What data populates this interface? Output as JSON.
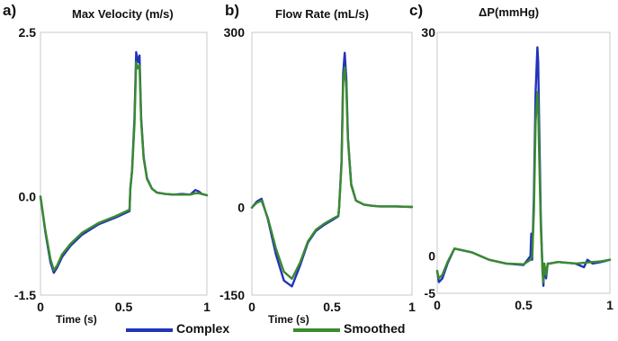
{
  "legend": [
    {
      "label": "Complex",
      "color": "#2233bb"
    },
    {
      "label": "Smoothed",
      "color": "#3a8a2e"
    }
  ],
  "chart_data": [
    {
      "type": "line",
      "panel_letter": "a)",
      "title": "Max Velocity (m/s)",
      "xlabel": "Time (s)",
      "xlim": [
        0,
        1
      ],
      "ylim": [
        -1.5,
        2.5
      ],
      "x_ticks": [
        {
          "value": 0,
          "label": "0"
        },
        {
          "value": 0.5,
          "label": "0.5"
        },
        {
          "value": 1,
          "label": "1"
        }
      ],
      "y_ticks": [
        {
          "value": 2.5,
          "label": "2.5"
        },
        {
          "value": 0,
          "label": "0.0"
        },
        {
          "value": -1.5,
          "label": "-1.5"
        }
      ],
      "series": [
        {
          "name": "Complex",
          "color": "#2233bb",
          "x": [
            0,
            0.03,
            0.06,
            0.08,
            0.1,
            0.13,
            0.18,
            0.25,
            0.35,
            0.45,
            0.535,
            0.54,
            0.55,
            0.565,
            0.575,
            0.585,
            0.595,
            0.605,
            0.62,
            0.64,
            0.67,
            0.7,
            0.75,
            0.8,
            0.85,
            0.9,
            0.93,
            0.95,
            0.97,
            1.0
          ],
          "y": [
            0.0,
            -0.55,
            -1.0,
            -1.16,
            -1.08,
            -0.92,
            -0.75,
            -0.58,
            -0.42,
            -0.32,
            -0.22,
            0.12,
            0.4,
            1.2,
            2.2,
            2.05,
            2.15,
            1.2,
            0.6,
            0.28,
            0.12,
            0.06,
            0.04,
            0.03,
            0.04,
            0.03,
            0.1,
            0.08,
            0.04,
            0.02
          ]
        },
        {
          "name": "Smoothed",
          "color": "#3a8a2e",
          "x": [
            0,
            0.03,
            0.06,
            0.08,
            0.1,
            0.13,
            0.18,
            0.25,
            0.35,
            0.45,
            0.535,
            0.54,
            0.55,
            0.565,
            0.575,
            0.585,
            0.595,
            0.605,
            0.62,
            0.64,
            0.67,
            0.7,
            0.75,
            0.8,
            0.85,
            0.9,
            0.93,
            0.95,
            0.97,
            1.0
          ],
          "y": [
            0.0,
            -0.52,
            -0.95,
            -1.12,
            -1.05,
            -0.88,
            -0.72,
            -0.55,
            -0.4,
            -0.3,
            -0.2,
            0.12,
            0.38,
            1.1,
            2.05,
            1.95,
            2.0,
            1.15,
            0.58,
            0.27,
            0.12,
            0.06,
            0.04,
            0.03,
            0.03,
            0.03,
            0.05,
            0.05,
            0.04,
            0.02
          ]
        }
      ]
    },
    {
      "type": "line",
      "panel_letter": "b)",
      "title": "Flow Rate (mL/s)",
      "xlabel": "Time (s)",
      "xlim": [
        0,
        1
      ],
      "ylim": [
        -150,
        300
      ],
      "x_ticks": [
        {
          "value": 0,
          "label": "0"
        },
        {
          "value": 0.5,
          "label": "0.5"
        },
        {
          "value": 1,
          "label": "1"
        }
      ],
      "y_ticks": [
        {
          "value": 300,
          "label": "300"
        },
        {
          "value": 0,
          "label": "0"
        },
        {
          "value": -150,
          "label": "-150"
        }
      ],
      "series": [
        {
          "name": "Complex",
          "color": "#2233bb",
          "x": [
            0,
            0.03,
            0.06,
            0.1,
            0.15,
            0.2,
            0.25,
            0.3,
            0.35,
            0.4,
            0.45,
            0.5,
            0.54,
            0.545,
            0.56,
            0.57,
            0.58,
            0.59,
            0.6,
            0.62,
            0.65,
            0.7,
            0.75,
            0.8,
            0.9,
            1.0
          ],
          "y": [
            0,
            10,
            15,
            -20,
            -80,
            -125,
            -135,
            -100,
            -60,
            -40,
            -30,
            -22,
            -15,
            0,
            80,
            230,
            265,
            220,
            120,
            40,
            12,
            5,
            3,
            2,
            2,
            1
          ]
        },
        {
          "name": "Smoothed",
          "color": "#3a8a2e",
          "x": [
            0,
            0.03,
            0.06,
            0.1,
            0.15,
            0.2,
            0.25,
            0.3,
            0.35,
            0.4,
            0.45,
            0.5,
            0.54,
            0.545,
            0.56,
            0.57,
            0.58,
            0.59,
            0.6,
            0.62,
            0.65,
            0.7,
            0.75,
            0.8,
            0.9,
            1.0
          ],
          "y": [
            0,
            8,
            12,
            -18,
            -70,
            -110,
            -122,
            -95,
            -58,
            -38,
            -28,
            -20,
            -14,
            0,
            75,
            215,
            240,
            205,
            115,
            38,
            12,
            5,
            3,
            2,
            2,
            1
          ]
        }
      ]
    },
    {
      "type": "line",
      "panel_letter": "c)",
      "title": "ΔP(mmHg)",
      "xlabel": "",
      "xlim": [
        0,
        1
      ],
      "ylim": [
        -5,
        30
      ],
      "x_ticks": [
        {
          "value": 0,
          "label": "0"
        },
        {
          "value": 0.5,
          "label": "0.5"
        },
        {
          "value": 1,
          "label": "1"
        }
      ],
      "y_ticks": [
        {
          "value": 30,
          "label": "30"
        },
        {
          "value": 0,
          "label": "0"
        },
        {
          "value": -5,
          "label": "-5"
        }
      ],
      "series": [
        {
          "name": "Complex",
          "color": "#2233bb",
          "x": [
            0,
            0.01,
            0.03,
            0.06,
            0.1,
            0.2,
            0.3,
            0.4,
            0.5,
            0.54,
            0.545,
            0.55,
            0.56,
            0.57,
            0.58,
            0.585,
            0.59,
            0.6,
            0.61,
            0.615,
            0.62,
            0.63,
            0.64,
            0.65,
            0.7,
            0.8,
            0.85,
            0.87,
            0.9,
            0.95,
            1.0
          ],
          "y": [
            -2,
            -3.5,
            -3,
            -1,
            1,
            0.5,
            -0.5,
            -1,
            -1.2,
            0,
            3,
            -0.5,
            8,
            22,
            28,
            26,
            18,
            5,
            -2,
            -4,
            -1,
            -3,
            -1,
            -1,
            -0.8,
            -1,
            -1.5,
            -0.5,
            -1,
            -0.8,
            -0.5
          ]
        },
        {
          "name": "Smoothed",
          "color": "#3a8a2e",
          "x": [
            0,
            0.01,
            0.03,
            0.06,
            0.1,
            0.2,
            0.3,
            0.4,
            0.5,
            0.54,
            0.55,
            0.56,
            0.57,
            0.58,
            0.585,
            0.59,
            0.6,
            0.61,
            0.615,
            0.62,
            0.63,
            0.64,
            0.65,
            0.7,
            0.8,
            0.9,
            0.95,
            1.0
          ],
          "y": [
            -2,
            -3,
            -2.5,
            -0.8,
            1,
            0.5,
            -0.5,
            -1,
            -1.1,
            -0.5,
            0,
            6,
            18,
            22,
            20,
            14,
            4,
            -2,
            -3.5,
            -1,
            -2.5,
            -1,
            -1,
            -0.8,
            -1,
            -0.8,
            -0.7,
            -0.5
          ]
        }
      ]
    }
  ]
}
